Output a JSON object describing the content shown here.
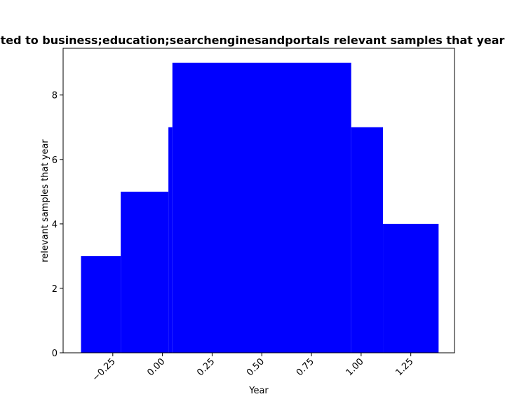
{
  "chart_data": {
    "type": "bar",
    "title": "ted to business;education;searchenginesandportals relevant samples that year",
    "xlabel": "Year",
    "ylabel": "relevant samples that year",
    "bar_color": "#0000ff",
    "background": "#ffffff",
    "grid": false,
    "legend": "none",
    "xlim": [
      -0.5,
      1.47
    ],
    "ylim": [
      0,
      9.45
    ],
    "x_ticks": [
      -0.25,
      0.0,
      0.25,
      0.5,
      0.75,
      1.0,
      1.25
    ],
    "x_tick_labels": [
      "−0.25",
      "0.00",
      "0.25",
      "0.50",
      "0.75",
      "1.00",
      "1.25"
    ],
    "y_ticks": [
      0,
      2,
      4,
      6,
      8
    ],
    "y_tick_labels": [
      "0",
      "2",
      "4",
      "6",
      "8"
    ],
    "bars": [
      {
        "x_start": -0.41,
        "x_end": -0.21,
        "value": 3
      },
      {
        "x_start": -0.21,
        "x_end": 0.03,
        "value": 5
      },
      {
        "x_start": 0.03,
        "x_end": 0.05,
        "value": 7
      },
      {
        "x_start": 0.05,
        "x_end": 0.95,
        "value": 9
      },
      {
        "x_start": 0.95,
        "x_end": 1.11,
        "value": 7
      },
      {
        "x_start": 1.11,
        "x_end": 1.39,
        "value": 4
      }
    ]
  }
}
